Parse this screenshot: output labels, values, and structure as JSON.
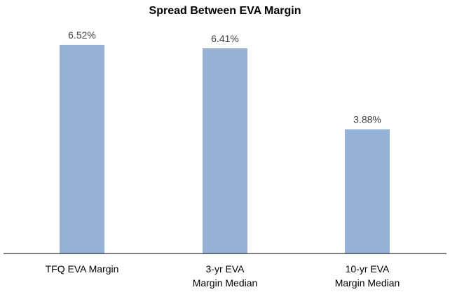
{
  "chart_data": {
    "type": "bar",
    "title": "Spread Between EVA Margin",
    "categories": [
      "TFQ EVA Margin",
      "3-yr EVA Margin Median",
      "10-yr EVA Margin Median"
    ],
    "category_lines": [
      [
        "TFQ EVA Margin"
      ],
      [
        "3-yr EVA",
        "Margin Median"
      ],
      [
        "10-yr EVA",
        "Margin Median"
      ]
    ],
    "values": [
      6.52,
      6.41,
      3.88
    ],
    "data_labels": [
      "6.52%",
      "6.41%",
      "3.88%"
    ],
    "xlabel": "",
    "ylabel": "",
    "ylim": [
      0,
      7
    ],
    "grid": false,
    "legend": "none",
    "bar_color": "#95b3d7",
    "axis_color": "#000000",
    "label_color": "#404040"
  }
}
